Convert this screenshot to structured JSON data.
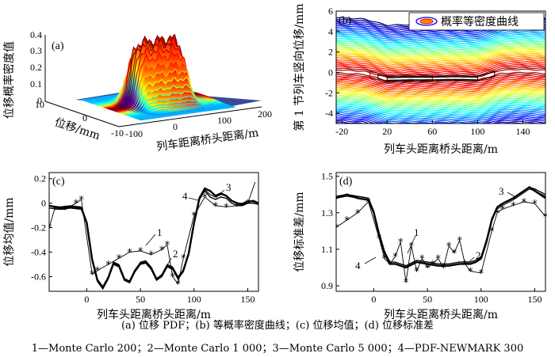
{
  "caption_line1": "(a) 位移 PDF；(b) 等概率密度曲线；(c) 位移均值；(d) 位移标准差",
  "caption_line2": "1—Monte Carlo 200；2—Monte Carlo 1 000；3—Monte Carlo 5 000；4—PDF-NEWMARK 300",
  "chart_data": [
    {
      "id": "a",
      "type": "surface",
      "panel_label": "(a)",
      "zlabel": "位移概率密度值",
      "ylabel": "位移/mm",
      "xlabel": "列车距离桥头距离/m",
      "x_ticks": [
        "-100",
        "0",
        "100",
        "200"
      ],
      "y_ticks": [
        "-10",
        "0",
        "10"
      ],
      "z_ticks": [
        "0",
        "0.1",
        "0.2",
        "0.3",
        "0.4"
      ],
      "xlim": [
        -100,
        200
      ],
      "ylim": [
        -10,
        10
      ],
      "zlim": [
        0,
        0.4
      ],
      "colormap": "jet"
    },
    {
      "id": "b",
      "type": "contour",
      "panel_label": "(b)",
      "legend": "概率等密度曲线",
      "xlabel": "列车头距离桥头距离/m",
      "ylabel": "第 1 节列车竖向位移/mm",
      "x_ticks": [
        -20,
        20,
        60,
        100,
        140
      ],
      "y_ticks": [
        -4,
        -2,
        0,
        2,
        4,
        6
      ],
      "xlim": [
        -25,
        160
      ],
      "ylim": [
        -5,
        6
      ],
      "colormap": "jet",
      "center_line": {
        "x": [
          -25,
          0,
          10,
          20,
          40,
          60,
          80,
          100,
          110,
          120,
          140,
          160
        ],
        "y": [
          0.1,
          -0.05,
          -0.35,
          -0.65,
          -0.6,
          -0.6,
          -0.55,
          -0.6,
          -0.3,
          0.05,
          0.15,
          0.05
        ]
      }
    },
    {
      "id": "c",
      "type": "line",
      "panel_label": "(c)",
      "xlabel": "列车头距离桥头距离/m",
      "ylabel": "位移均值/mm",
      "x_ticks": [
        0,
        50,
        100,
        150
      ],
      "y_ticks": [
        0.2,
        0,
        -0.2,
        -0.4,
        -0.6
      ],
      "xlim": [
        -35,
        160
      ],
      "ylim": [
        -0.72,
        0.25
      ],
      "annotations": [
        "1",
        "2",
        "3",
        "4"
      ],
      "series": [
        {
          "x": [
            -35,
            -25,
            -15,
            -5,
            0,
            5,
            10,
            15,
            20,
            25,
            30,
            35,
            40,
            45,
            50,
            55,
            60,
            65,
            70,
            75,
            80,
            85,
            90,
            95,
            100,
            105,
            110,
            115,
            120,
            125,
            130,
            135,
            140,
            145,
            150,
            155,
            160
          ],
          "y": [
            -0.02,
            -0.03,
            -0.02,
            -0.03,
            -0.15,
            -0.45,
            -0.62,
            -0.68,
            -0.6,
            -0.48,
            -0.5,
            -0.62,
            -0.64,
            -0.55,
            -0.48,
            -0.47,
            -0.52,
            -0.62,
            -0.58,
            -0.5,
            -0.52,
            -0.6,
            -0.55,
            -0.4,
            -0.15,
            0.05,
            0.11,
            0.07,
            0.05,
            0.07,
            0.06,
            0.02,
            0.0,
            0.0,
            0.02,
            0.01,
            0.0
          ]
        },
        {
          "x": [
            -35,
            -25,
            -15,
            -5,
            0,
            5,
            10,
            15,
            20,
            25,
            30,
            35,
            40,
            45,
            50,
            55,
            60,
            65,
            70,
            75,
            80,
            85,
            90,
            95,
            100,
            105,
            110,
            115,
            120,
            125,
            130,
            135,
            140,
            145,
            150,
            155,
            160
          ],
          "y": [
            -0.04,
            -0.05,
            -0.04,
            -0.05,
            -0.17,
            -0.47,
            -0.64,
            -0.7,
            -0.62,
            -0.5,
            -0.52,
            -0.63,
            -0.65,
            -0.56,
            -0.5,
            -0.49,
            -0.54,
            -0.63,
            -0.6,
            -0.52,
            -0.54,
            -0.62,
            -0.56,
            -0.42,
            -0.17,
            0.03,
            0.1,
            0.05,
            0.03,
            0.05,
            0.04,
            0.0,
            -0.02,
            -0.02,
            0.0,
            0.0,
            -0.01
          ]
        },
        {
          "x": [
            -35,
            -25,
            -15,
            -5,
            0,
            5,
            10,
            15,
            20,
            25,
            30,
            35,
            40,
            45,
            50,
            55,
            60,
            65,
            70,
            75,
            80,
            85,
            90,
            95,
            100,
            105,
            110,
            115,
            120,
            125,
            130,
            135,
            140,
            145,
            150,
            155,
            160
          ],
          "y": [
            -0.02,
            -0.04,
            -0.03,
            -0.04,
            -0.16,
            -0.46,
            -0.63,
            -0.69,
            -0.61,
            -0.49,
            -0.51,
            -0.62,
            -0.64,
            -0.55,
            -0.49,
            -0.48,
            -0.53,
            -0.62,
            -0.59,
            -0.51,
            -0.53,
            -0.61,
            -0.55,
            -0.41,
            -0.16,
            0.04,
            0.12,
            0.1,
            0.06,
            0.08,
            0.06,
            0.02,
            0.0,
            -0.01,
            0.01,
            0.02,
            0.0
          ]
        },
        {
          "x": [
            -35,
            -30,
            -20,
            -10,
            -5,
            5,
            10,
            20,
            30,
            40,
            50,
            60,
            70,
            75,
            80,
            85,
            90,
            100,
            110,
            120,
            130,
            140,
            150,
            160
          ],
          "y": [
            -0.2,
            -0.05,
            -0.05,
            0.0,
            0.03,
            -0.58,
            -0.55,
            -0.5,
            -0.45,
            -0.4,
            -0.39,
            -0.42,
            -0.38,
            -0.34,
            -0.6,
            -0.66,
            -0.45,
            -0.1,
            0.05,
            -0.02,
            -0.03,
            -0.02,
            0.0,
            0.25
          ]
        }
      ]
    },
    {
      "id": "d",
      "type": "line",
      "panel_label": "(d)",
      "xlabel": "列车头距离桥头距离/m",
      "ylabel": "位移标准差/mm",
      "x_ticks": [
        0,
        50,
        100,
        150
      ],
      "y_ticks": [
        1.5,
        1.3,
        1.1,
        0.9
      ],
      "y_tick_labels": [
        "1.5",
        "1.3",
        "1.1",
        "0.9"
      ],
      "xlim": [
        -35,
        160
      ],
      "ylim": [
        0.87,
        1.52
      ],
      "annotations": [
        "1",
        "2",
        "3",
        "4"
      ],
      "series": [
        {
          "x": [
            -35,
            -25,
            -15,
            -5,
            0,
            5,
            10,
            15,
            20,
            30,
            40,
            50,
            60,
            70,
            80,
            90,
            95,
            100,
            105,
            110,
            115,
            120,
            130,
            140,
            145,
            150,
            160
          ],
          "y": [
            1.38,
            1.39,
            1.38,
            1.37,
            1.3,
            1.18,
            1.08,
            1.02,
            1.02,
            1.0,
            1.03,
            1.02,
            1.01,
            1.01,
            1.02,
            1.02,
            1.03,
            1.05,
            1.14,
            1.26,
            1.32,
            1.34,
            1.37,
            1.41,
            1.43,
            1.42,
            1.39
          ]
        },
        {
          "x": [
            -35,
            -25,
            -15,
            -5,
            0,
            5,
            10,
            15,
            20,
            30,
            40,
            50,
            60,
            70,
            80,
            90,
            95,
            100,
            105,
            110,
            115,
            120,
            130,
            140,
            145,
            150,
            160
          ],
          "y": [
            1.39,
            1.4,
            1.39,
            1.38,
            1.31,
            1.19,
            1.09,
            1.03,
            1.03,
            1.01,
            1.04,
            1.03,
            1.02,
            1.02,
            1.03,
            1.03,
            1.04,
            1.06,
            1.15,
            1.27,
            1.33,
            1.35,
            1.38,
            1.42,
            1.44,
            1.43,
            1.4
          ]
        },
        {
          "x": [
            -35,
            -25,
            -15,
            -5,
            0,
            5,
            10,
            15,
            20,
            30,
            40,
            50,
            60,
            70,
            80,
            90,
            95,
            100,
            105,
            110,
            115,
            120,
            130,
            140,
            145,
            150,
            160
          ],
          "y": [
            1.38,
            1.4,
            1.38,
            1.37,
            1.3,
            1.18,
            1.08,
            1.02,
            1.02,
            1.0,
            1.03,
            1.02,
            1.01,
            1.01,
            1.02,
            1.02,
            1.03,
            1.05,
            1.14,
            1.26,
            1.33,
            1.35,
            1.38,
            1.42,
            1.44,
            1.42,
            1.38
          ]
        },
        {
          "x": [
            -35,
            -25,
            -15,
            -5,
            5,
            10,
            15,
            20,
            25,
            30,
            35,
            40,
            45,
            50,
            55,
            60,
            65,
            70,
            75,
            80,
            85,
            90,
            100,
            110,
            115,
            120,
            130,
            140,
            150,
            160
          ],
          "y": [
            1.22,
            1.26,
            1.3,
            1.36,
            1.16,
            1.05,
            1.02,
            1.06,
            1.14,
            0.92,
            1.12,
            0.98,
            1.05,
            1.0,
            1.02,
            1.05,
            1.0,
            1.12,
            1.08,
            1.15,
            1.02,
            0.98,
            0.97,
            1.2,
            1.3,
            1.32,
            1.34,
            1.36,
            1.35,
            1.28
          ]
        }
      ]
    }
  ]
}
